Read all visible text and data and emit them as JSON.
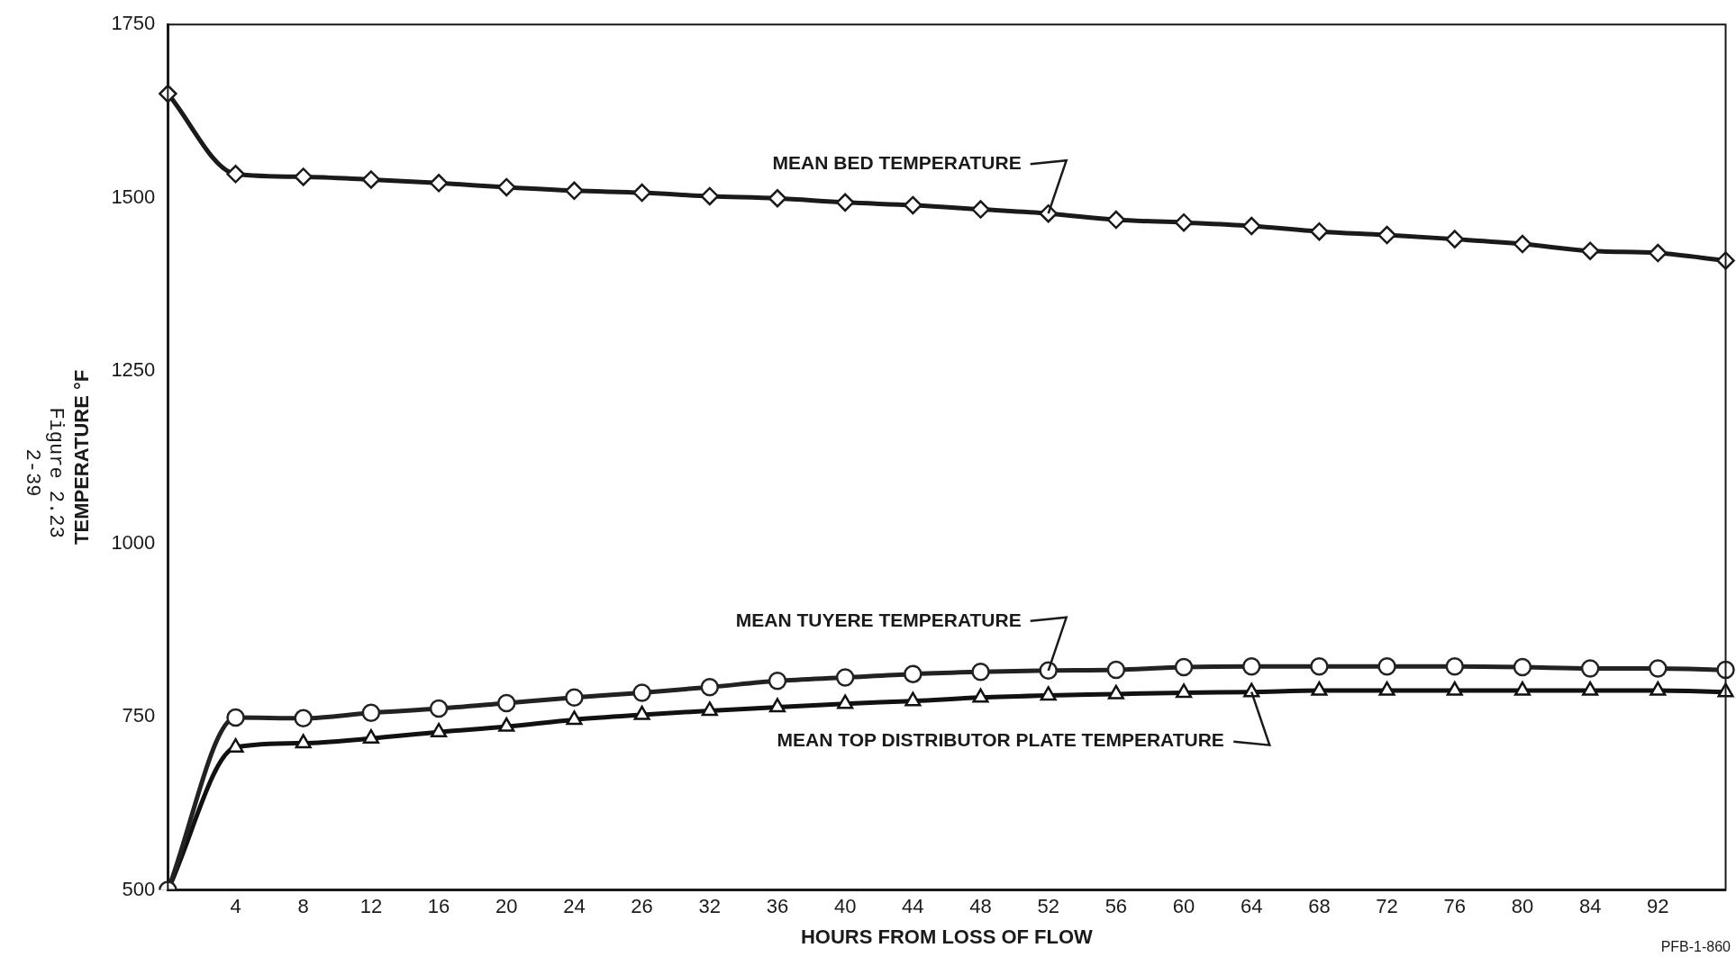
{
  "chart_data": {
    "type": "line",
    "xlabel": "HOURS FROM LOSS OF FLOW",
    "ylabel": "TEMPERATURE °F",
    "categories": [
      null,
      "4",
      "8",
      "12",
      "16",
      "20",
      "24",
      "26",
      "32",
      "36",
      "40",
      "44",
      "48",
      "52",
      "56",
      "60",
      "64",
      "68",
      "72",
      "76",
      "80",
      "84",
      "92",
      null
    ],
    "ylim": [
      500,
      1750
    ],
    "yticks": [
      500,
      750,
      1000,
      1250,
      1500,
      1750
    ],
    "grid": false,
    "legend": false,
    "line_style": "solid",
    "series": [
      {
        "color": "#1a1a1a",
        "marker": "diamond",
        "values": [
          1650,
          1534,
          1530,
          1526,
          1521,
          1515,
          1510,
          1507,
          1502,
          1499,
          1493,
          1489,
          1483,
          1477,
          1468,
          1464,
          1459,
          1451,
          1446,
          1440,
          1433,
          1423,
          1420,
          1409
        ]
      },
      {
        "color": "#222222",
        "marker": "circle",
        "values": [
          500,
          749,
          748,
          756,
          762,
          770,
          778,
          785,
          793,
          802,
          807,
          812,
          815,
          817,
          818,
          822,
          823,
          823,
          823,
          823,
          822,
          820,
          820,
          818
        ]
      },
      {
        "color": "#111111",
        "marker": "triangle",
        "values": [
          500,
          706,
          712,
          719,
          728,
          736,
          746,
          753,
          759,
          764,
          769,
          773,
          778,
          781,
          783,
          785,
          786,
          788,
          788,
          788,
          788,
          788,
          788,
          786
        ]
      }
    ],
    "annotations": [
      {
        "text": "MEAN BED TEMPERATURE",
        "x": "52",
        "y": 1477
      },
      {
        "text": "MEAN TUYERE TEMPERATURE",
        "x": "52",
        "y": 817
      },
      {
        "text": "MEAN TOP DISTRIBUTOR PLATE TEMPERATURE",
        "x": "64",
        "y": 786
      },
      "Figure 2.23",
      "2-39",
      "PFB-1-860"
    ]
  }
}
